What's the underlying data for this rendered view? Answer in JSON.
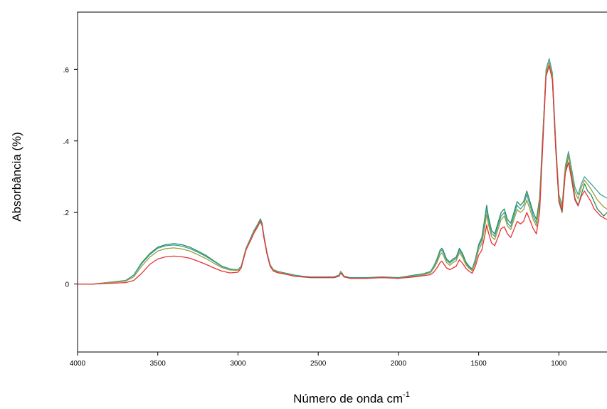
{
  "chart_data": {
    "type": "line",
    "title": "",
    "xlabel": "Número de onda  cm",
    "xlabel_superscript": "-1",
    "ylabel": "Absorbância (%)",
    "xlim": [
      4000,
      700
    ],
    "ylim": [
      -0.19,
      0.76
    ],
    "x_reversed": true,
    "grid": false,
    "x_ticks": [
      {
        "value": 4000,
        "label": "4000"
      },
      {
        "value": 3500,
        "label": "3500"
      },
      {
        "value": 3000,
        "label": "3000"
      },
      {
        "value": 2500,
        "label": "2500"
      },
      {
        "value": 2000,
        "label": "2000"
      },
      {
        "value": 1500,
        "label": "1500"
      },
      {
        "value": 1000,
        "label": "1000"
      }
    ],
    "y_ticks": [
      {
        "value": 0.0,
        "label": "0"
      },
      {
        "value": 0.2,
        "label": ".2"
      },
      {
        "value": 0.4,
        "label": ".4"
      },
      {
        "value": 0.6,
        "label": ".6"
      }
    ],
    "series": [
      {
        "color": "#2a8a5a",
        "x": [
          4000,
          3900,
          3800,
          3700,
          3650,
          3600,
          3550,
          3500,
          3450,
          3400,
          3350,
          3300,
          3250,
          3200,
          3150,
          3100,
          3050,
          3000,
          2980,
          2950,
          2920,
          2900,
          2880,
          2860,
          2850,
          2840,
          2820,
          2800,
          2780,
          2750,
          2700,
          2650,
          2600,
          2550,
          2500,
          2450,
          2400,
          2370,
          2360,
          2350,
          2340,
          2300,
          2200,
          2100,
          2000,
          1900,
          1850,
          1800,
          1780,
          1760,
          1740,
          1730,
          1720,
          1700,
          1680,
          1660,
          1640,
          1620,
          1600,
          1580,
          1560,
          1540,
          1520,
          1500,
          1480,
          1460,
          1450,
          1440,
          1420,
          1400,
          1380,
          1360,
          1340,
          1320,
          1300,
          1280,
          1260,
          1240,
          1220,
          1200,
          1180,
          1160,
          1140,
          1120,
          1100,
          1080,
          1060,
          1040,
          1020,
          1000,
          980,
          960,
          940,
          920,
          900,
          880,
          860,
          840,
          820,
          800,
          780,
          760,
          740,
          720,
          700
        ],
        "y": [
          0.0,
          0.0,
          0.005,
          0.01,
          0.025,
          0.06,
          0.085,
          0.103,
          0.11,
          0.113,
          0.11,
          0.103,
          0.092,
          0.08,
          0.065,
          0.05,
          0.042,
          0.04,
          0.05,
          0.1,
          0.13,
          0.15,
          0.165,
          0.182,
          0.17,
          0.14,
          0.09,
          0.055,
          0.04,
          0.035,
          0.03,
          0.025,
          0.022,
          0.02,
          0.02,
          0.02,
          0.02,
          0.025,
          0.035,
          0.03,
          0.022,
          0.018,
          0.018,
          0.02,
          0.018,
          0.025,
          0.028,
          0.035,
          0.05,
          0.07,
          0.095,
          0.1,
          0.093,
          0.07,
          0.062,
          0.07,
          0.075,
          0.1,
          0.085,
          0.062,
          0.05,
          0.042,
          0.07,
          0.11,
          0.13,
          0.19,
          0.22,
          0.19,
          0.15,
          0.14,
          0.17,
          0.2,
          0.21,
          0.18,
          0.17,
          0.2,
          0.23,
          0.22,
          0.23,
          0.26,
          0.23,
          0.2,
          0.18,
          0.24,
          0.42,
          0.585,
          0.61,
          0.57,
          0.38,
          0.23,
          0.2,
          0.31,
          0.36,
          0.3,
          0.24,
          0.22,
          0.25,
          0.28,
          0.26,
          0.25,
          0.23,
          0.21,
          0.2,
          0.19,
          0.2
        ]
      },
      {
        "color": "#3da3a0",
        "x": [
          4000,
          3900,
          3800,
          3700,
          3650,
          3600,
          3550,
          3500,
          3450,
          3400,
          3350,
          3300,
          3250,
          3200,
          3150,
          3100,
          3050,
          3000,
          2980,
          2950,
          2920,
          2900,
          2880,
          2860,
          2850,
          2840,
          2820,
          2800,
          2780,
          2750,
          2700,
          2650,
          2600,
          2550,
          2500,
          2450,
          2400,
          2370,
          2360,
          2350,
          2340,
          2300,
          2200,
          2100,
          2000,
          1900,
          1850,
          1800,
          1780,
          1760,
          1740,
          1730,
          1720,
          1700,
          1680,
          1660,
          1640,
          1620,
          1600,
          1580,
          1560,
          1540,
          1520,
          1500,
          1480,
          1460,
          1450,
          1440,
          1420,
          1400,
          1380,
          1360,
          1340,
          1320,
          1300,
          1280,
          1260,
          1240,
          1220,
          1200,
          1180,
          1160,
          1140,
          1120,
          1100,
          1080,
          1060,
          1040,
          1020,
          1000,
          980,
          960,
          940,
          920,
          900,
          880,
          860,
          840,
          820,
          800,
          780,
          760,
          740,
          720,
          700
        ],
        "y": [
          0.0,
          0.0,
          0.005,
          0.01,
          0.024,
          0.057,
          0.082,
          0.1,
          0.107,
          0.109,
          0.106,
          0.099,
          0.089,
          0.077,
          0.063,
          0.049,
          0.041,
          0.04,
          0.05,
          0.1,
          0.128,
          0.148,
          0.162,
          0.178,
          0.167,
          0.138,
          0.089,
          0.054,
          0.039,
          0.034,
          0.029,
          0.024,
          0.021,
          0.019,
          0.019,
          0.019,
          0.019,
          0.024,
          0.034,
          0.029,
          0.021,
          0.017,
          0.017,
          0.019,
          0.017,
          0.024,
          0.027,
          0.034,
          0.048,
          0.066,
          0.09,
          0.095,
          0.088,
          0.066,
          0.058,
          0.066,
          0.071,
          0.095,
          0.08,
          0.058,
          0.047,
          0.04,
          0.066,
          0.104,
          0.123,
          0.18,
          0.21,
          0.18,
          0.142,
          0.133,
          0.162,
          0.19,
          0.2,
          0.17,
          0.16,
          0.19,
          0.22,
          0.21,
          0.22,
          0.25,
          0.22,
          0.19,
          0.17,
          0.23,
          0.41,
          0.6,
          0.63,
          0.59,
          0.4,
          0.25,
          0.22,
          0.33,
          0.37,
          0.32,
          0.27,
          0.25,
          0.28,
          0.3,
          0.29,
          0.28,
          0.27,
          0.26,
          0.25,
          0.245,
          0.24
        ]
      },
      {
        "color": "#9aa03a",
        "x": [
          4000,
          3900,
          3800,
          3700,
          3650,
          3600,
          3550,
          3500,
          3450,
          3400,
          3350,
          3300,
          3250,
          3200,
          3150,
          3100,
          3050,
          3000,
          2980,
          2950,
          2920,
          2900,
          2880,
          2860,
          2850,
          2840,
          2820,
          2800,
          2780,
          2750,
          2700,
          2650,
          2600,
          2550,
          2500,
          2450,
          2400,
          2370,
          2360,
          2350,
          2340,
          2300,
          2200,
          2100,
          2000,
          1900,
          1850,
          1800,
          1780,
          1760,
          1740,
          1730,
          1720,
          1700,
          1680,
          1660,
          1640,
          1620,
          1600,
          1580,
          1560,
          1540,
          1520,
          1500,
          1480,
          1460,
          1450,
          1440,
          1420,
          1400,
          1380,
          1360,
          1340,
          1320,
          1300,
          1280,
          1260,
          1240,
          1220,
          1200,
          1180,
          1160,
          1140,
          1120,
          1100,
          1080,
          1060,
          1040,
          1020,
          1000,
          980,
          960,
          940,
          920,
          900,
          880,
          860,
          840,
          820,
          800,
          780,
          760,
          740,
          720,
          700
        ],
        "y": [
          0.0,
          0.0,
          0.004,
          0.008,
          0.02,
          0.05,
          0.075,
          0.092,
          0.099,
          0.101,
          0.098,
          0.092,
          0.082,
          0.071,
          0.058,
          0.046,
          0.039,
          0.038,
          0.048,
          0.098,
          0.126,
          0.146,
          0.16,
          0.177,
          0.165,
          0.136,
          0.088,
          0.053,
          0.038,
          0.033,
          0.028,
          0.023,
          0.02,
          0.018,
          0.018,
          0.018,
          0.018,
          0.022,
          0.032,
          0.027,
          0.02,
          0.016,
          0.016,
          0.018,
          0.016,
          0.022,
          0.025,
          0.031,
          0.044,
          0.06,
          0.082,
          0.087,
          0.08,
          0.06,
          0.052,
          0.06,
          0.065,
          0.088,
          0.074,
          0.054,
          0.044,
          0.037,
          0.06,
          0.096,
          0.113,
          0.165,
          0.195,
          0.168,
          0.133,
          0.124,
          0.152,
          0.18,
          0.19,
          0.162,
          0.152,
          0.18,
          0.208,
          0.2,
          0.208,
          0.235,
          0.208,
          0.18,
          0.162,
          0.222,
          0.4,
          0.59,
          0.62,
          0.58,
          0.39,
          0.245,
          0.215,
          0.325,
          0.36,
          0.31,
          0.258,
          0.238,
          0.27,
          0.29,
          0.278,
          0.265,
          0.25,
          0.235,
          0.225,
          0.215,
          0.21
        ]
      },
      {
        "color": "#e8303a",
        "x": [
          4000,
          3900,
          3800,
          3700,
          3650,
          3600,
          3550,
          3500,
          3450,
          3400,
          3350,
          3300,
          3250,
          3200,
          3150,
          3100,
          3050,
          3000,
          2980,
          2950,
          2920,
          2900,
          2880,
          2860,
          2850,
          2840,
          2820,
          2800,
          2780,
          2750,
          2700,
          2650,
          2600,
          2550,
          2500,
          2450,
          2400,
          2370,
          2360,
          2350,
          2340,
          2300,
          2200,
          2100,
          2000,
          1900,
          1850,
          1800,
          1780,
          1760,
          1740,
          1730,
          1720,
          1700,
          1680,
          1660,
          1640,
          1620,
          1600,
          1580,
          1560,
          1540,
          1520,
          1500,
          1480,
          1460,
          1450,
          1440,
          1420,
          1400,
          1380,
          1360,
          1340,
          1320,
          1300,
          1280,
          1260,
          1240,
          1220,
          1200,
          1180,
          1160,
          1140,
          1120,
          1100,
          1080,
          1060,
          1040,
          1020,
          1000,
          980,
          960,
          940,
          920,
          900,
          880,
          860,
          840,
          820,
          800,
          780,
          760,
          740,
          720,
          700
        ],
        "y": [
          0.0,
          0.0,
          0.002,
          0.004,
          0.01,
          0.03,
          0.055,
          0.07,
          0.076,
          0.078,
          0.076,
          0.072,
          0.064,
          0.055,
          0.045,
          0.036,
          0.031,
          0.033,
          0.045,
          0.095,
          0.123,
          0.143,
          0.158,
          0.175,
          0.163,
          0.133,
          0.085,
          0.05,
          0.036,
          0.031,
          0.027,
          0.022,
          0.02,
          0.018,
          0.018,
          0.018,
          0.018,
          0.022,
          0.03,
          0.026,
          0.02,
          0.016,
          0.016,
          0.018,
          0.016,
          0.02,
          0.023,
          0.026,
          0.033,
          0.045,
          0.06,
          0.064,
          0.058,
          0.045,
          0.04,
          0.045,
          0.05,
          0.068,
          0.058,
          0.044,
          0.036,
          0.03,
          0.05,
          0.08,
          0.095,
          0.14,
          0.165,
          0.145,
          0.115,
          0.107,
          0.13,
          0.155,
          0.16,
          0.14,
          0.13,
          0.152,
          0.175,
          0.168,
          0.175,
          0.2,
          0.178,
          0.155,
          0.14,
          0.2,
          0.39,
          0.58,
          0.61,
          0.57,
          0.38,
          0.235,
          0.205,
          0.31,
          0.34,
          0.29,
          0.235,
          0.218,
          0.245,
          0.26,
          0.245,
          0.23,
          0.21,
          0.2,
          0.19,
          0.185,
          0.18
        ]
      }
    ]
  }
}
